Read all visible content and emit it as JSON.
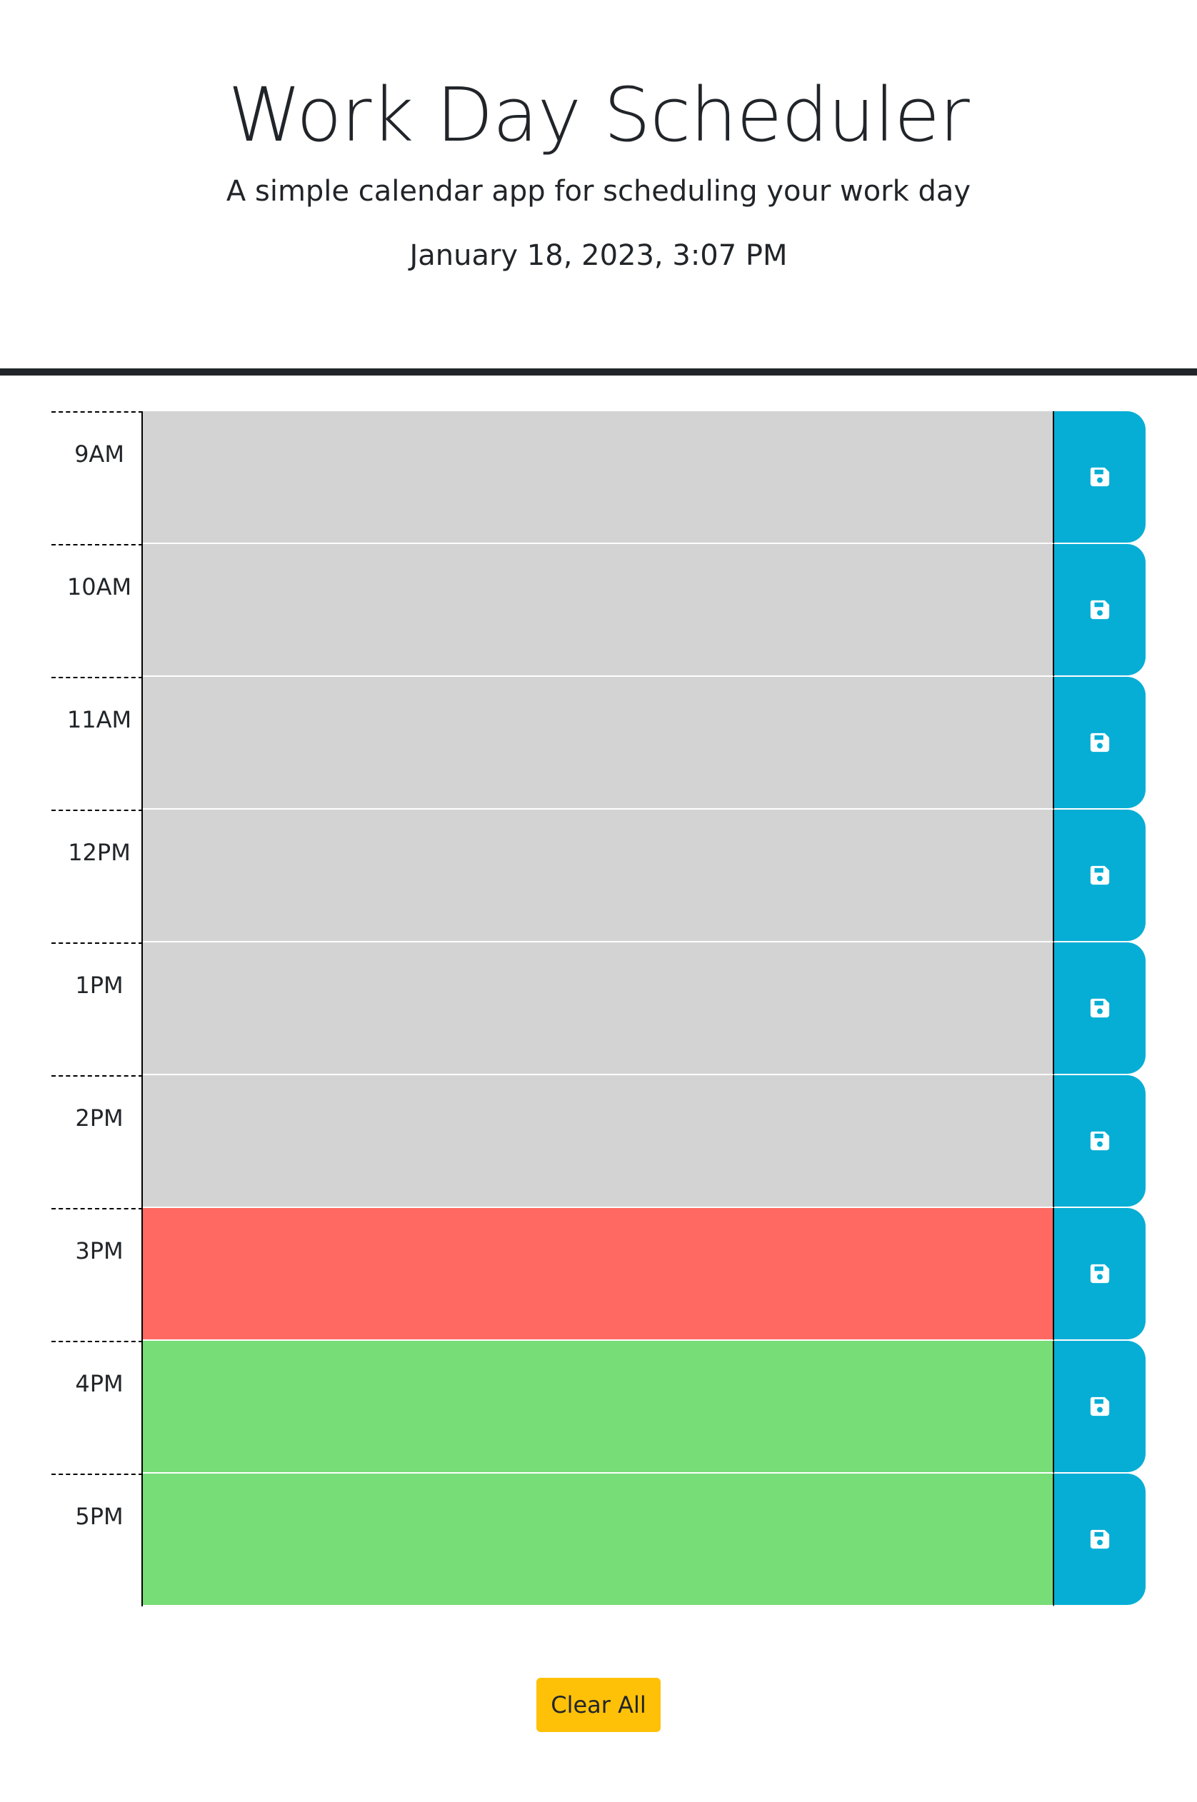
{
  "header": {
    "title": "Work Day Scheduler",
    "subtitle": "A simple calendar app for scheduling your work day",
    "current_day": "January 18, 2023, 3:07 PM"
  },
  "status_colors": {
    "past": "#d3d3d3",
    "present": "#ff6961",
    "future": "#77dd77",
    "save_button": "#06aed5",
    "clear_button": "#ffc107"
  },
  "save_icon": "floppy-disk-icon",
  "timeblocks": [
    {
      "hour": "9AM",
      "status": "past",
      "text": ""
    },
    {
      "hour": "10AM",
      "status": "past",
      "text": ""
    },
    {
      "hour": "11AM",
      "status": "past",
      "text": ""
    },
    {
      "hour": "12PM",
      "status": "past",
      "text": ""
    },
    {
      "hour": "1PM",
      "status": "past",
      "text": ""
    },
    {
      "hour": "2PM",
      "status": "past",
      "text": ""
    },
    {
      "hour": "3PM",
      "status": "present",
      "text": ""
    },
    {
      "hour": "4PM",
      "status": "future",
      "text": ""
    },
    {
      "hour": "5PM",
      "status": "future",
      "text": ""
    }
  ],
  "footer": {
    "clear_label": "Clear All"
  }
}
